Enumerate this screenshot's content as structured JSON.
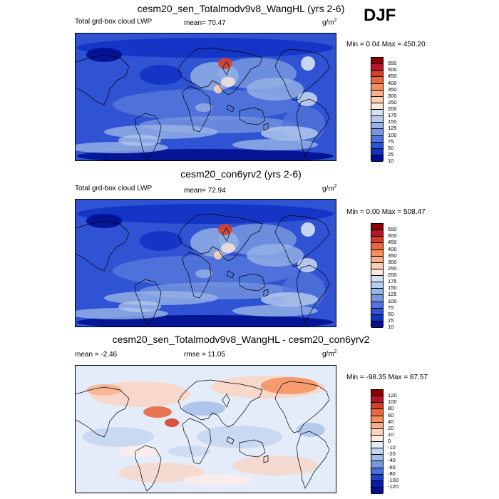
{
  "season": "DJF",
  "panels": [
    {
      "title": "cesm20_sen_Totalmodv9v8_WangHL (yrs 2-6)",
      "left_label": "Total grd-box cloud LWP",
      "mean_text": "mean=  70.47",
      "unit_base": "g/m",
      "unit_exp": "2",
      "minmax": "Min =   0.04 Max = 450.20",
      "cbar_levels": [
        "550",
        "500",
        "450",
        "400",
        "350",
        "300",
        "250",
        "200",
        "175",
        "150",
        "125",
        "100",
        "75",
        "50",
        "25",
        "10"
      ],
      "cbar_colors": [
        "#8b0000",
        "#b2182b",
        "#d6402b",
        "#e8683f",
        "#f4905e",
        "#f8b08a",
        "#fbcfb5",
        "#fde9dc",
        "#d7e3f4",
        "#b7cdee",
        "#97b4e6",
        "#7796df",
        "#5274da",
        "#2f53d2",
        "#1232c4",
        "#000e8f"
      ],
      "field": "lwp"
    },
    {
      "title": "cesm20_con6yrv2 (yrs 2-6)",
      "left_label": "Total grd-box cloud LWP",
      "mean_text": "mean=  72.94",
      "unit_base": "g/m",
      "unit_exp": "2",
      "minmax": "Min =   0.00 Max = 508.47",
      "cbar_levels": [
        "550",
        "500",
        "450",
        "400",
        "350",
        "300",
        "250",
        "200",
        "175",
        "150",
        "125",
        "100",
        "75",
        "50",
        "25",
        "10"
      ],
      "cbar_colors": [
        "#8b0000",
        "#b2182b",
        "#d6402b",
        "#e8683f",
        "#f4905e",
        "#f8b08a",
        "#fbcfb5",
        "#fde9dc",
        "#d7e3f4",
        "#b7cdee",
        "#97b4e6",
        "#7796df",
        "#5274da",
        "#2f53d2",
        "#1232c4",
        "#000e8f"
      ],
      "field": "lwp"
    },
    {
      "title": "cesm20_sen_Totalmodv9v8_WangHL - cesm20_con6yrv2",
      "left_label": "mean =  -2.46",
      "mean_text": "rmse =  11.05",
      "unit_base": "g/m",
      "unit_exp": "2",
      "minmax": "Min = -98.35 Max =  87.57",
      "cbar_levels": [
        "120",
        "100",
        "80",
        "60",
        "40",
        "20",
        "10",
        "0",
        "-10",
        "-20",
        "-40",
        "-60",
        "-80",
        "-100",
        "-120"
      ],
      "cbar_colors": [
        "#8b0000",
        "#b2182b",
        "#d6402b",
        "#e8683f",
        "#f4905e",
        "#f8b08a",
        "#fbd3bf",
        "#fdeee6",
        "#e3ecf8",
        "#c3d5f0",
        "#a0bce8",
        "#7796df",
        "#4b6fd8",
        "#2040c9",
        "#0a1fa8",
        "#000e8f"
      ],
      "field": "diff"
    }
  ]
}
